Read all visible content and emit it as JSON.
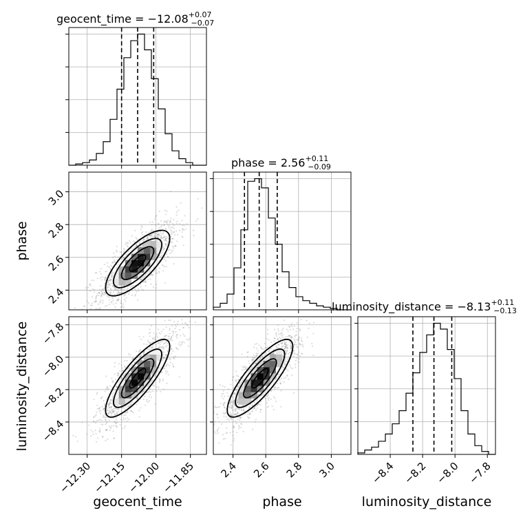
{
  "chart_data": {
    "type": "corner",
    "parameters": [
      "geocent_time",
      "phase",
      "luminosity_distance"
    ],
    "titles": [
      {
        "name": "geocent_time",
        "median": "−12.08",
        "plus": "+0.07",
        "minus": "−0.07"
      },
      {
        "name": "phase",
        "median": "2.56",
        "plus": "+0.11",
        "minus": "−0.09"
      },
      {
        "name": "luminosity_distance",
        "median": "−8.13",
        "plus": "+0.11",
        "minus": "−0.13"
      }
    ],
    "ranges": {
      "geocent_time": [
        -12.38,
        -11.78
      ],
      "phase": [
        2.28,
        3.12
      ],
      "luminosity_distance": [
        -8.6,
        -7.75
      ]
    },
    "ticks": {
      "geocent_time": [
        -12.3,
        -12.15,
        -12.0,
        -11.85
      ],
      "phase": [
        2.4,
        2.6,
        2.8,
        3.0
      ],
      "luminosity_distance": [
        -8.4,
        -8.2,
        -8.0,
        -7.8
      ]
    },
    "tick_labels": {
      "geocent_time": [
        "−12.30",
        "−12.15",
        "−12.00",
        "−11.85"
      ],
      "phase": [
        "2.4",
        "2.6",
        "2.8",
        "3.0"
      ],
      "luminosity_distance": [
        "−8.4",
        "−8.2",
        "−8.0",
        "−7.8"
      ]
    },
    "quantiles": {
      "geocent_time": [
        -12.15,
        -12.08,
        -12.01
      ],
      "phase": [
        2.47,
        2.56,
        2.67
      ],
      "luminosity_distance": [
        -8.26,
        -8.13,
        -8.02
      ]
    },
    "histograms": {
      "geocent_time": {
        "edges": [
          -12.38,
          -12.35,
          -12.32,
          -12.29,
          -12.26,
          -12.23,
          -12.2,
          -12.17,
          -12.14,
          -12.11,
          -12.08,
          -12.05,
          -12.02,
          -11.99,
          -11.96,
          -11.93,
          -11.9,
          -11.87,
          -11.84,
          -11.81,
          -11.78
        ],
        "counts": [
          0,
          1,
          2,
          4,
          9,
          18,
          35,
          58,
          82,
          95,
          100,
          88,
          66,
          43,
          24,
          11,
          5,
          2,
          0,
          0
        ]
      },
      "phase": {
        "edges": [
          2.28,
          2.322,
          2.364,
          2.406,
          2.448,
          2.49,
          2.532,
          2.574,
          2.616,
          2.658,
          2.7,
          2.742,
          2.784,
          2.826,
          2.868,
          2.91,
          2.952,
          2.994,
          3.036,
          3.078,
          3.12
        ],
        "counts": [
          2,
          5,
          12,
          32,
          61,
          98,
          100,
          93,
          70,
          50,
          29,
          17,
          10,
          7,
          5,
          3,
          2,
          1,
          0,
          0
        ]
      },
      "luminosity_distance": {
        "edges": [
          -8.6,
          -8.5575,
          -8.515,
          -8.4725,
          -8.43,
          -8.3875,
          -8.345,
          -8.3025,
          -8.26,
          -8.2175,
          -8.175,
          -8.1325,
          -8.09,
          -8.0475,
          -8.005,
          -7.9625,
          -7.92,
          -7.8775,
          -7.835,
          -7.7925,
          -7.75
        ],
        "counts": [
          1,
          3,
          5,
          9,
          14,
          21,
          30,
          42,
          56,
          70,
          82,
          90,
          86,
          72,
          52,
          30,
          14,
          6,
          2,
          0
        ]
      }
    },
    "pairs": [
      {
        "x": "geocent_time",
        "y": "phase",
        "mean": [
          -12.08,
          2.565
        ],
        "sd": [
          0.07,
          0.1
        ],
        "corr": 0.75
      },
      {
        "x": "geocent_time",
        "y": "luminosity_distance",
        "mean": [
          -12.08,
          -8.13
        ],
        "sd": [
          0.07,
          0.12
        ],
        "corr": 0.82
      },
      {
        "x": "phase",
        "y": "luminosity_distance",
        "mean": [
          2.565,
          -8.13
        ],
        "sd": [
          0.1,
          0.12
        ],
        "corr": 0.82
      }
    ],
    "contour_levels": [
      0.5,
      1.0,
      1.5,
      2.0
    ],
    "grid": true
  }
}
